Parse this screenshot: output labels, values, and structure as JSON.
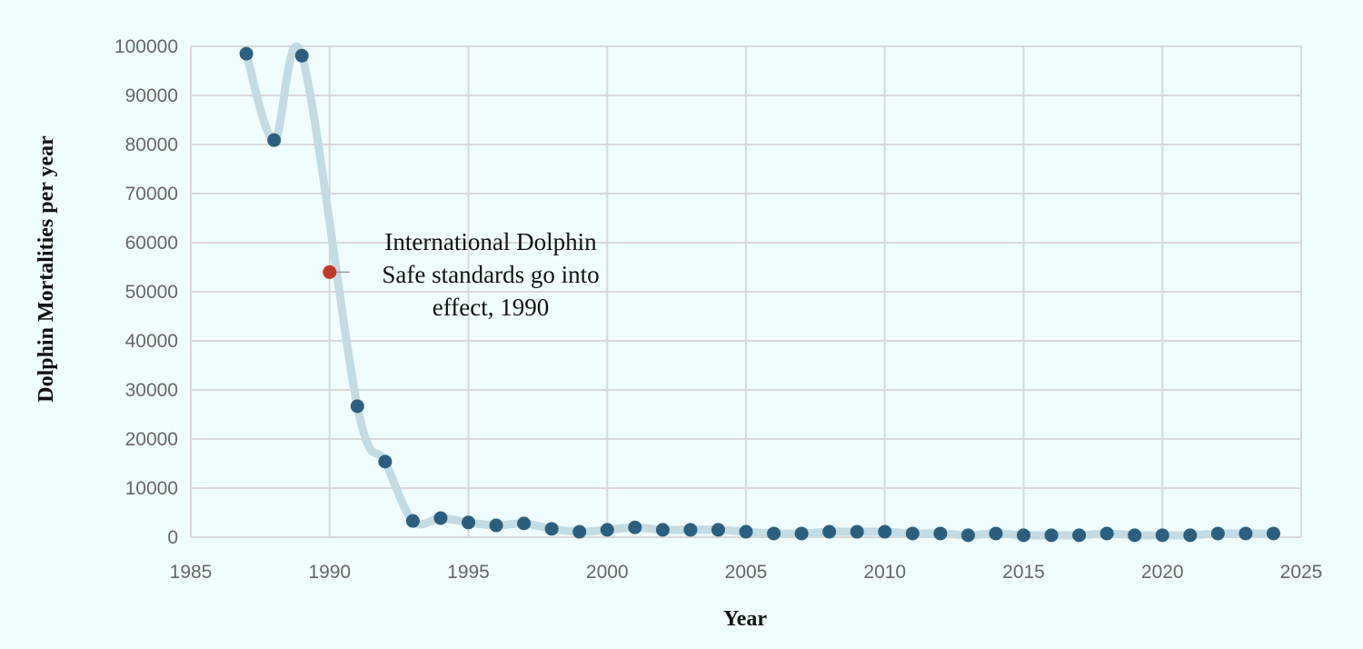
{
  "chart_data": {
    "type": "line",
    "title": "",
    "xlabel": "Year",
    "ylabel": "Dolphin Mortalities per year",
    "xlim": [
      1985,
      2025
    ],
    "ylim": [
      0,
      100000
    ],
    "xticks": [
      1985,
      1990,
      1995,
      2000,
      2005,
      2010,
      2015,
      2020,
      2025
    ],
    "yticks": [
      0,
      10000,
      20000,
      30000,
      40000,
      50000,
      60000,
      70000,
      80000,
      90000,
      100000
    ],
    "grid": true,
    "series": [
      {
        "name": "Dolphin mortalities",
        "x": [
          1987,
          1988,
          1989,
          1991,
          1992,
          1993,
          1994,
          1995,
          1996,
          1997,
          1998,
          1999,
          2000,
          2001,
          2002,
          2003,
          2004,
          2005,
          2006,
          2007,
          2008,
          2009,
          2010,
          2011,
          2012,
          2013,
          2014,
          2015,
          2016,
          2017,
          2018,
          2019,
          2020,
          2021,
          2022,
          2023,
          2024
        ],
        "values": [
          98500,
          80900,
          98100,
          26700,
          15400,
          3300,
          3900,
          3000,
          2400,
          2800,
          1700,
          1100,
          1500,
          2000,
          1500,
          1500,
          1500,
          1100,
          750,
          750,
          1100,
          1100,
          1100,
          750,
          750,
          400,
          750,
          400,
          400,
          400,
          750,
          400,
          400,
          400,
          750,
          750,
          750
        ]
      }
    ],
    "annotations": [
      {
        "x": 1990,
        "y": 54000,
        "lines": [
          "International Dolphin",
          "Safe standards go into",
          "effect, 1990"
        ],
        "marker_color": "#c0392b"
      }
    ],
    "colors": {
      "line": "#c3dbe3",
      "points": "#2c5f7f",
      "grid": "#d9d9d9"
    }
  }
}
